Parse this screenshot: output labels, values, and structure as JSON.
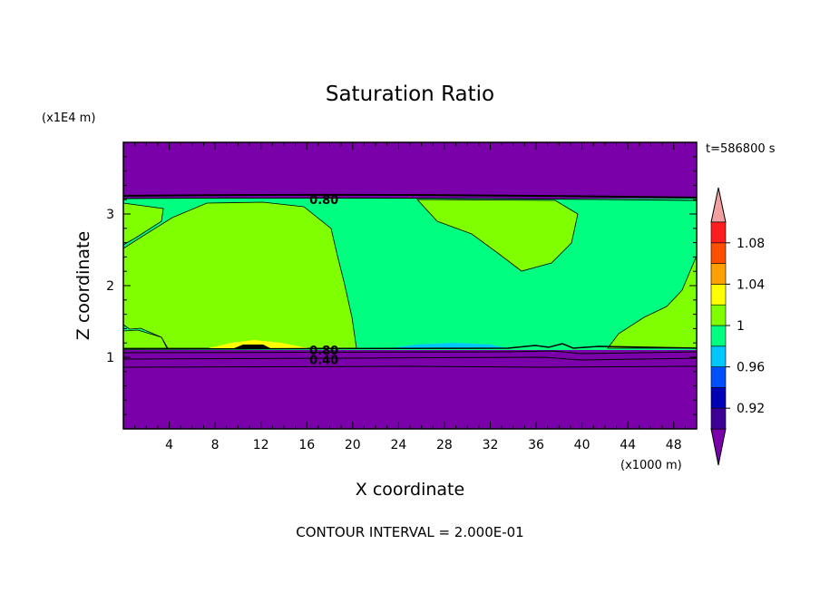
{
  "chart_data": {
    "type": "heatmap",
    "title": "Saturation Ratio",
    "xlabel": "X coordinate",
    "ylabel": "Z coordinate",
    "x_unit": "(x1000 m)",
    "y_unit": "(x1E4 m)",
    "time_label": "t=586800 s",
    "footer": "CONTOUR INTERVAL = 2.000E-01",
    "xlim": [
      0,
      50
    ],
    "ylim": [
      0,
      4
    ],
    "x_ticks": [
      4,
      8,
      12,
      16,
      20,
      24,
      28,
      32,
      36,
      40,
      44,
      48
    ],
    "y_ticks": [
      1,
      2,
      3
    ],
    "contour_labels": [
      {
        "text": "0.80",
        "x": 17.5,
        "z": 3.2
      },
      {
        "text": "0.80",
        "x": 17.5,
        "z": 1.1
      },
      {
        "text": "0.40",
        "x": 17.5,
        "z": 0.97
      }
    ],
    "colorbar": {
      "levels": [
        {
          "range": "<0.90",
          "color": "#7a00aa"
        },
        {
          "range": "0.90-0.92",
          "color": "#3c0096"
        },
        {
          "range": "0.92-0.94",
          "color": "#0000b4"
        },
        {
          "range": "0.94-0.96",
          "color": "#0050ff"
        },
        {
          "range": "0.96-0.98",
          "color": "#00c8ff"
        },
        {
          "range": "0.98-1.00",
          "color": "#00ff80"
        },
        {
          "range": "1.00-1.02",
          "color": "#80ff00"
        },
        {
          "range": "1.02-1.04",
          "color": "#ffff00"
        },
        {
          "range": "1.04-1.06",
          "color": "#ffa000"
        },
        {
          "range": "1.06-1.08",
          "color": "#ff5000"
        },
        {
          "range": "1.08-1.10",
          "color": "#ff1e1e"
        },
        {
          "range": ">1.10",
          "color": "#f0a0a0"
        }
      ],
      "tick_labels": [
        "0.92",
        "0.96",
        "1",
        "1.04",
        "1.08"
      ]
    }
  }
}
